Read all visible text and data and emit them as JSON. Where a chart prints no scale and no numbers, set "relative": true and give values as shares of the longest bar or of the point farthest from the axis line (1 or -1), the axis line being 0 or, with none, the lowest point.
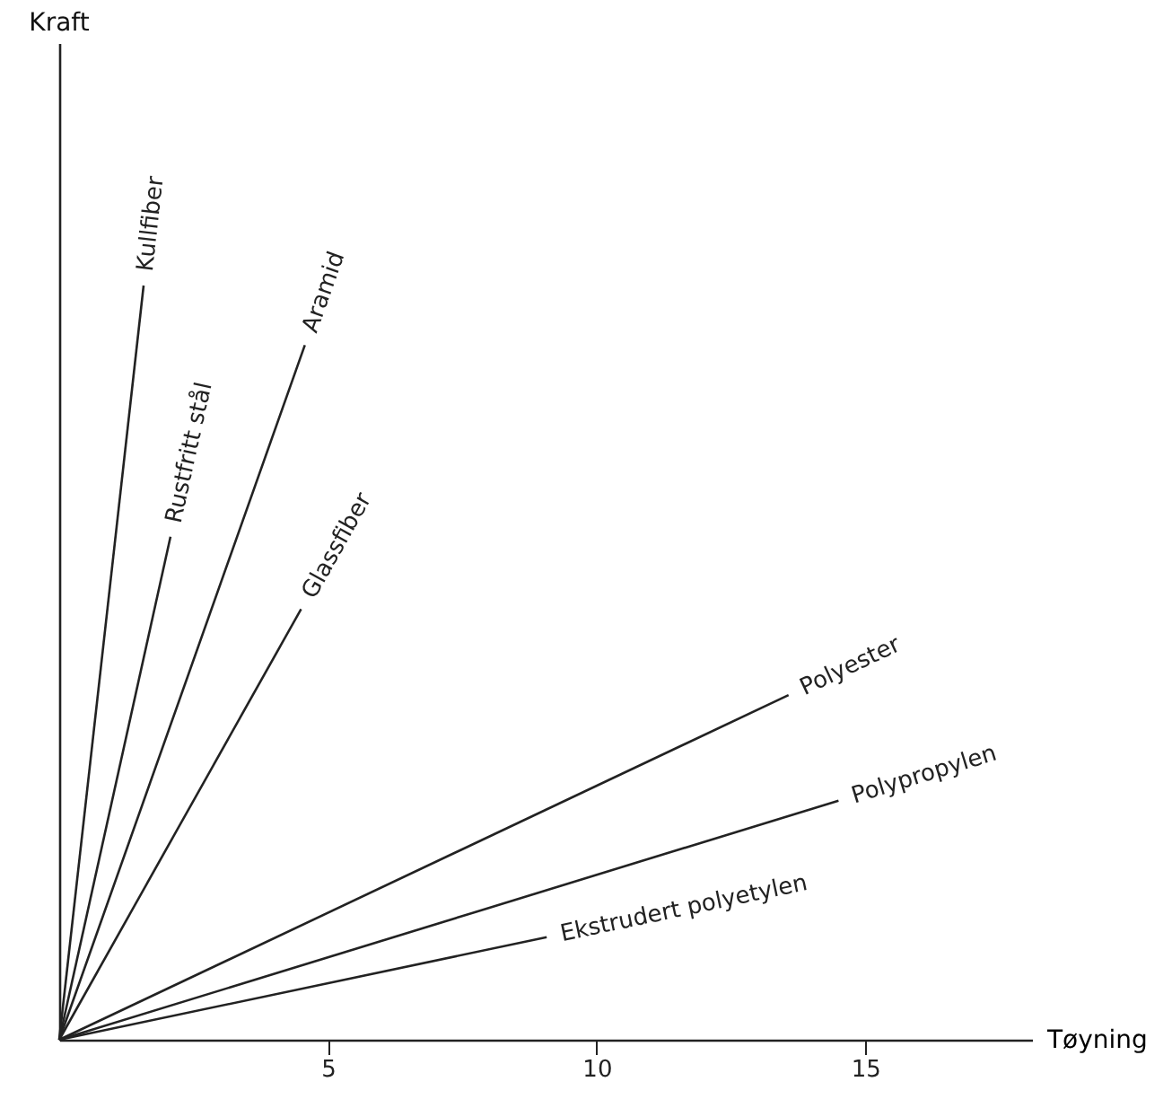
{
  "chart_data": {
    "type": "line",
    "relative": true,
    "xlabel": "Tøyning",
    "annotations": [
      "Kraft"
    ],
    "xlim": [
      0,
      18.1
    ],
    "xticks": [
      5,
      10,
      15
    ],
    "grid": false,
    "legend": false,
    "marker": "none",
    "line_style": "solid",
    "series": [
      {
        "name": "Kullfiber",
        "color": "#222222",
        "x": [
          0,
          1.57
        ],
        "values": [
          0,
          1
        ]
      },
      {
        "name": "Rustfritt stål",
        "color": "#222222",
        "x": [
          0,
          2.07
        ],
        "values": [
          0,
          0.667
        ]
      },
      {
        "name": "Aramid",
        "color": "#222222",
        "x": [
          0,
          4.57
        ],
        "values": [
          0,
          0.921
        ]
      },
      {
        "name": "Glassfiber",
        "color": "#222222",
        "x": [
          0,
          4.5
        ],
        "values": [
          0,
          0.571
        ]
      },
      {
        "name": "Polyester",
        "color": "#222222",
        "x": [
          0,
          13.57
        ],
        "values": [
          0,
          0.457
        ]
      },
      {
        "name": "Polypropylen",
        "color": "#222222",
        "x": [
          0,
          14.5
        ],
        "values": [
          0,
          0.317
        ]
      },
      {
        "name": "Ekstrudert polyetylen",
        "color": "#222222",
        "x": [
          0,
          9.07
        ],
        "values": [
          0,
          0.136
        ]
      }
    ]
  }
}
